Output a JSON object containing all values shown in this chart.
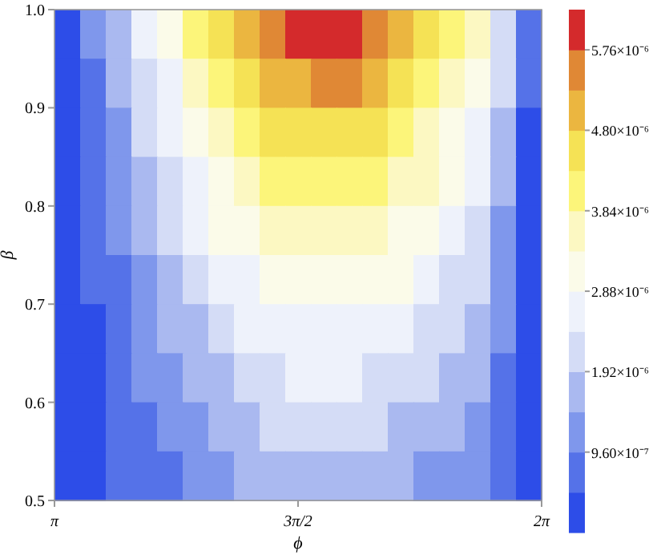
{
  "chart_data": {
    "type": "heatmap",
    "xlabel": "ϕ",
    "ylabel": "β",
    "xlim": [
      3.14159,
      6.28319
    ],
    "xticks": [
      {
        "value": 3.14159,
        "label": "π"
      },
      {
        "value": 4.71239,
        "label": "3π/2"
      },
      {
        "value": 6.28319,
        "label": "2π"
      }
    ],
    "ylim": [
      0.5,
      1.0
    ],
    "yticks": [
      {
        "value": 0.5,
        "label": "0.5"
      },
      {
        "value": 0.6,
        "label": "0.6"
      },
      {
        "value": 0.7,
        "label": "0.7"
      },
      {
        "value": 0.8,
        "label": "0.8"
      },
      {
        "value": 0.9,
        "label": "0.9"
      },
      {
        "value": 1.0,
        "label": "1.0"
      }
    ],
    "clim": [
      0,
      6.24e-06
    ],
    "cticks": [
      {
        "value": 9.6e-07,
        "label": "9.60×10⁻⁷"
      },
      {
        "value": 1.92e-06,
        "label": "1.92×10⁻⁶"
      },
      {
        "value": 2.88e-06,
        "label": "2.88×10⁻⁶"
      },
      {
        "value": 3.84e-06,
        "label": "3.84×10⁻⁶"
      },
      {
        "value": 4.8e-06,
        "label": "4.80×10⁻⁶"
      },
      {
        "value": 5.76e-06,
        "label": "5.76×10⁻⁶"
      }
    ],
    "colors": [
      "#2d4de8",
      "#5572e8",
      "#7f97ec",
      "#aab9f0",
      "#d4dcf6",
      "#eef2fb",
      "#fbfbe9",
      "#fcf8c2",
      "#fcf57a",
      "#f5e255",
      "#ebb640",
      "#e08835",
      "#d42a2c"
    ],
    "cells": [
      [
        3e-07,
        1.01e-06,
        1.73e-06,
        2.44e-06,
        3.15e-06,
        3.93e-06,
        4.58e-06,
        5.12e-06,
        5.56e-06,
        5.83e-06,
        5.95e-06,
        5.89e-06,
        5.65e-06,
        5.24e-06,
        4.7e-06,
        4.17e-06,
        3.51e-06,
        2.14e-06,
        6e-07
      ],
      [
        2.7e-07,
        9.1e-07,
        1.56e-06,
        2.2e-06,
        2.85e-06,
        3.54e-06,
        4.13e-06,
        4.62e-06,
        5.02e-06,
        5.26e-06,
        5.37e-06,
        5.32e-06,
        5.1e-06,
        4.73e-06,
        4.24e-06,
        3.76e-06,
        3.17e-06,
        1.93e-06,
        5.4e-07
      ],
      [
        2.4e-07,
        8.1e-07,
        1.39e-06,
        1.96e-06,
        2.54e-06,
        3.16e-06,
        3.69e-06,
        4.12e-06,
        4.48e-06,
        4.69e-06,
        4.79e-06,
        4.74e-06,
        4.55e-06,
        4.22e-06,
        3.78e-06,
        3.35e-06,
        2.83e-06,
        1.72e-06,
        4.8e-07
      ],
      [
        2.1e-07,
        7.3e-07,
        1.24e-06,
        1.75e-06,
        2.26e-06,
        2.82e-06,
        3.29e-06,
        3.67e-06,
        3.99e-06,
        4.18e-06,
        4.27e-06,
        4.23e-06,
        4.06e-06,
        3.76e-06,
        3.37e-06,
        2.99e-06,
        2.52e-06,
        1.54e-06,
        4.3e-07
      ],
      [
        1.9e-07,
        6.4e-07,
        1.09e-06,
        1.54e-06,
        1.99e-06,
        2.48e-06,
        2.9e-06,
        3.23e-06,
        3.52e-06,
        3.68e-06,
        3.76e-06,
        3.72e-06,
        3.57e-06,
        3.31e-06,
        2.97e-06,
        2.63e-06,
        2.22e-06,
        1.35e-06,
        3.8e-07
      ],
      [
        1.7e-07,
        5.6e-07,
        9.6e-07,
        1.35e-06,
        1.75e-06,
        2.18e-06,
        2.54e-06,
        2.84e-06,
        3.09e-06,
        3.23e-06,
        3.3e-06,
        3.27e-06,
        3.14e-06,
        2.9e-06,
        2.61e-06,
        2.31e-06,
        1.95e-06,
        1.19e-06,
        3.3e-07
      ],
      [
        1.4e-07,
        4.8e-07,
        8.3e-07,
        1.17e-06,
        1.51e-06,
        1.88e-06,
        2.19e-06,
        2.45e-06,
        2.66e-06,
        2.79e-06,
        2.85e-06,
        2.82e-06,
        2.71e-06,
        2.51e-06,
        2.25e-06,
        2e-06,
        1.68e-06,
        1.03e-06,
        2.9e-07
      ],
      [
        1.2e-07,
        4.2e-07,
        7.1e-07,
        1e-06,
        1.3e-06,
        1.62e-06,
        1.89e-06,
        2.11e-06,
        2.29e-06,
        2.4e-06,
        2.45e-06,
        2.43e-06,
        2.33e-06,
        2.16e-06,
        1.94e-06,
        1.72e-06,
        1.45e-06,
        8.8e-07,
        2.5e-07
      ],
      [
        1e-07,
        3.5e-07,
        6e-07,
        8.4e-07,
        1.09e-06,
        1.36e-06,
        1.59e-06,
        1.77e-06,
        1.93e-06,
        2.02e-06,
        2.06e-06,
        2.04e-06,
        1.96e-06,
        1.81e-06,
        1.63e-06,
        1.44e-06,
        1.22e-06,
        7.4e-07,
        2.1e-07
      ],
      [
        9e-08,
        2.9e-07,
        4.9e-07,
        7e-07,
        9e-07,
        1.12e-06,
        1.31e-06,
        1.46e-06,
        1.59e-06,
        1.67e-06,
        1.7e-06,
        1.68e-06,
        1.62e-06,
        1.5e-06,
        1.34e-06,
        1.19e-06,
        1e-06,
        6.1e-07,
        1.7e-07
      ]
    ]
  }
}
